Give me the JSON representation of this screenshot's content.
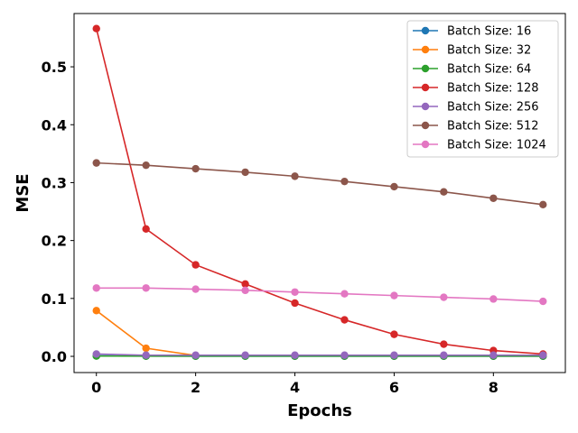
{
  "chart_data": {
    "type": "line",
    "title": "",
    "xlabel": "Epochs",
    "ylabel": "MSE",
    "xlim": [
      -0.45,
      9.45
    ],
    "ylim": [
      -0.028,
      0.592
    ],
    "xticks": [
      0,
      2,
      4,
      6,
      8
    ],
    "yticks": [
      0.0,
      0.1,
      0.2,
      0.3,
      0.4,
      0.5
    ],
    "grid": false,
    "legend_position": "top-right",
    "x": [
      0,
      1,
      2,
      3,
      4,
      5,
      6,
      7,
      8,
      9
    ],
    "series": [
      {
        "name": "Batch Size: 16",
        "color": "#1f77b4",
        "values": [
          0.001,
          0.0005,
          0.0004,
          0.0004,
          0.0004,
          0.0004,
          0.0004,
          0.0004,
          0.0004,
          0.0004
        ]
      },
      {
        "name": "Batch Size: 32",
        "color": "#ff7f0e",
        "values": [
          0.079,
          0.014,
          0.0015,
          0.001,
          0.001,
          0.001,
          0.001,
          0.001,
          0.001,
          0.001
        ]
      },
      {
        "name": "Batch Size: 64",
        "color": "#2ca02c",
        "values": [
          0.0005,
          0.0003,
          0.0003,
          0.0003,
          0.0003,
          0.0003,
          0.0003,
          0.0003,
          0.0003,
          0.0003
        ]
      },
      {
        "name": "Batch Size: 128",
        "color": "#d62728",
        "values": [
          0.566,
          0.22,
          0.158,
          0.125,
          0.092,
          0.063,
          0.038,
          0.021,
          0.01,
          0.004
        ]
      },
      {
        "name": "Batch Size: 256",
        "color": "#9467bd",
        "values": [
          0.004,
          0.002,
          0.002,
          0.002,
          0.002,
          0.002,
          0.002,
          0.002,
          0.002,
          0.002
        ]
      },
      {
        "name": "Batch Size: 512",
        "color": "#8c564b",
        "values": [
          0.334,
          0.33,
          0.324,
          0.318,
          0.311,
          0.302,
          0.293,
          0.284,
          0.273,
          0.262
        ]
      },
      {
        "name": "Batch Size: 1024",
        "color": "#e377c2",
        "values": [
          0.118,
          0.118,
          0.116,
          0.114,
          0.111,
          0.108,
          0.105,
          0.102,
          0.099,
          0.095
        ]
      }
    ]
  }
}
